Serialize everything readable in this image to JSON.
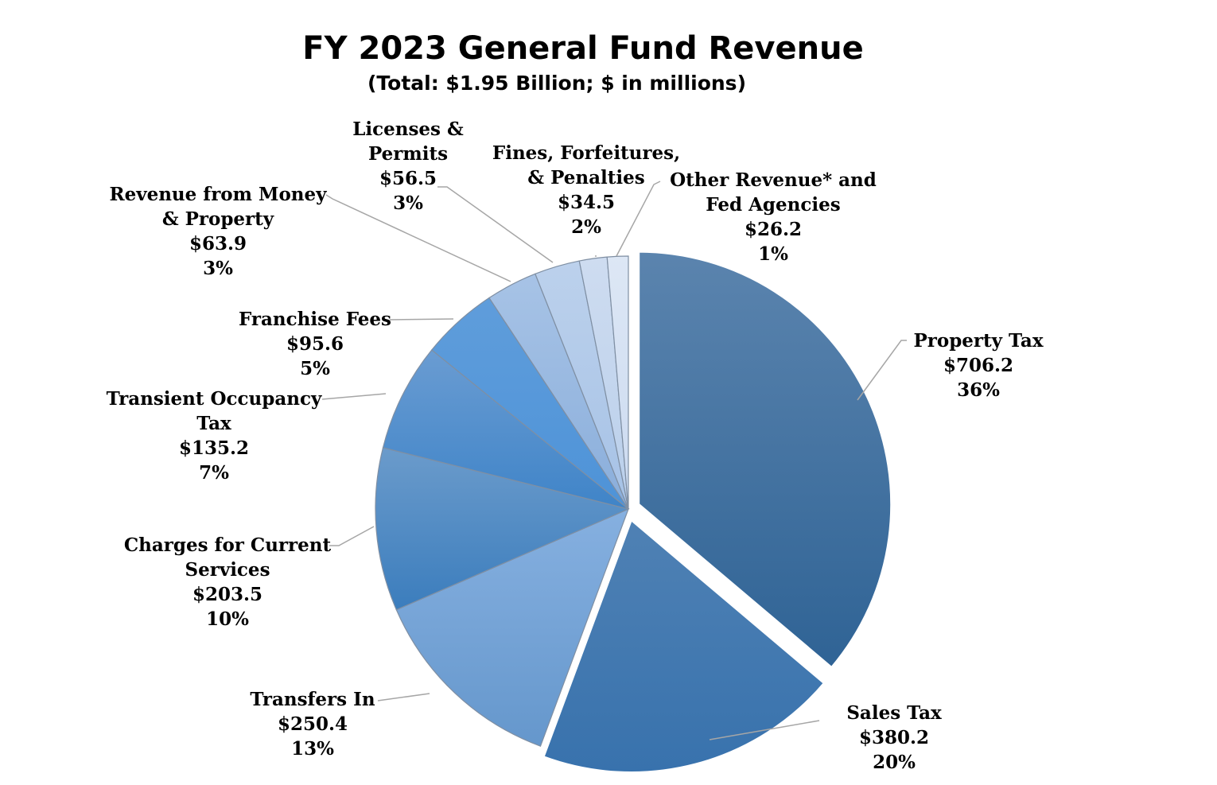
{
  "chart_data": {
    "type": "pie",
    "title": "FY 2023 General Fund Revenue",
    "subtitle": "(Total: $1.95 Billion; $ in millions)",
    "slices": [
      {
        "name": "Property Tax",
        "name_lines": [
          "Property Tax"
        ],
        "value": 706.2,
        "value_label": "$706.2",
        "percent_label": "36%",
        "color_top": "#5b84ae",
        "color_bottom": "#2f6395",
        "exploded": true
      },
      {
        "name": "Sales Tax",
        "name_lines": [
          "Sales Tax"
        ],
        "value": 380.2,
        "value_label": "$380.2",
        "percent_label": "20%",
        "color_top": "#4f81b4",
        "color_bottom": "#3872ad",
        "exploded": true
      },
      {
        "name": "Transfers In",
        "name_lines": [
          "Transfers In"
        ],
        "value": 250.4,
        "value_label": "$250.4",
        "percent_label": "13%",
        "color_top": "#86b0e0",
        "color_bottom": "#6597cc",
        "exploded": false
      },
      {
        "name": "Charges for Current Services",
        "name_lines": [
          "Charges for Current",
          "Services"
        ],
        "value": 203.5,
        "value_label": "$203.5",
        "percent_label": "10%",
        "color_top": "#6b9bcb",
        "color_bottom": "#3b7dbd",
        "exploded": false
      },
      {
        "name": "Transient Occupancy Tax",
        "name_lines": [
          "Transient Occupancy",
          "Tax"
        ],
        "value": 135.2,
        "value_label": "$135.2",
        "percent_label": "7%",
        "color_top": "#6a9cd2",
        "color_bottom": "#3f84c8",
        "exploded": false
      },
      {
        "name": "Franchise Fees",
        "name_lines": [
          "Franchise Fees"
        ],
        "value": 95.6,
        "value_label": "$95.6",
        "percent_label": "5%",
        "color_top": "#5f9ddb",
        "color_bottom": "#4e93d8",
        "exploded": false
      },
      {
        "name": "Revenue from Money & Property",
        "name_lines": [
          "Revenue from Money",
          "& Property"
        ],
        "value": 63.9,
        "value_label": "$63.9",
        "percent_label": "3%",
        "color_top": "#a7c3e6",
        "color_bottom": "#8aaedb",
        "exploded": false
      },
      {
        "name": "Licenses & Permits",
        "name_lines": [
          "Licenses &",
          "Permits"
        ],
        "value": 56.5,
        "value_label": "$56.5",
        "percent_label": "3%",
        "color_top": "#bcd1ec",
        "color_bottom": "#a6c2e6",
        "exploded": false
      },
      {
        "name": "Fines, Forfeitures, & Penalties",
        "name_lines": [
          "Fines, Forfeitures,",
          "& Penalties"
        ],
        "value": 34.5,
        "value_label": "$34.5",
        "percent_label": "2%",
        "color_top": "#cedcf0",
        "color_bottom": "#b9cfeb",
        "exploded": false
      },
      {
        "name": "Other Revenue* and Fed Agencies",
        "name_lines": [
          "Other Revenue* and",
          "Fed Agencies"
        ],
        "value": 26.2,
        "value_label": "$26.2",
        "percent_label": "1%",
        "color_top": "#dde7f5",
        "color_bottom": "#cbdaf0",
        "exploded": false
      }
    ],
    "legend": "none"
  }
}
